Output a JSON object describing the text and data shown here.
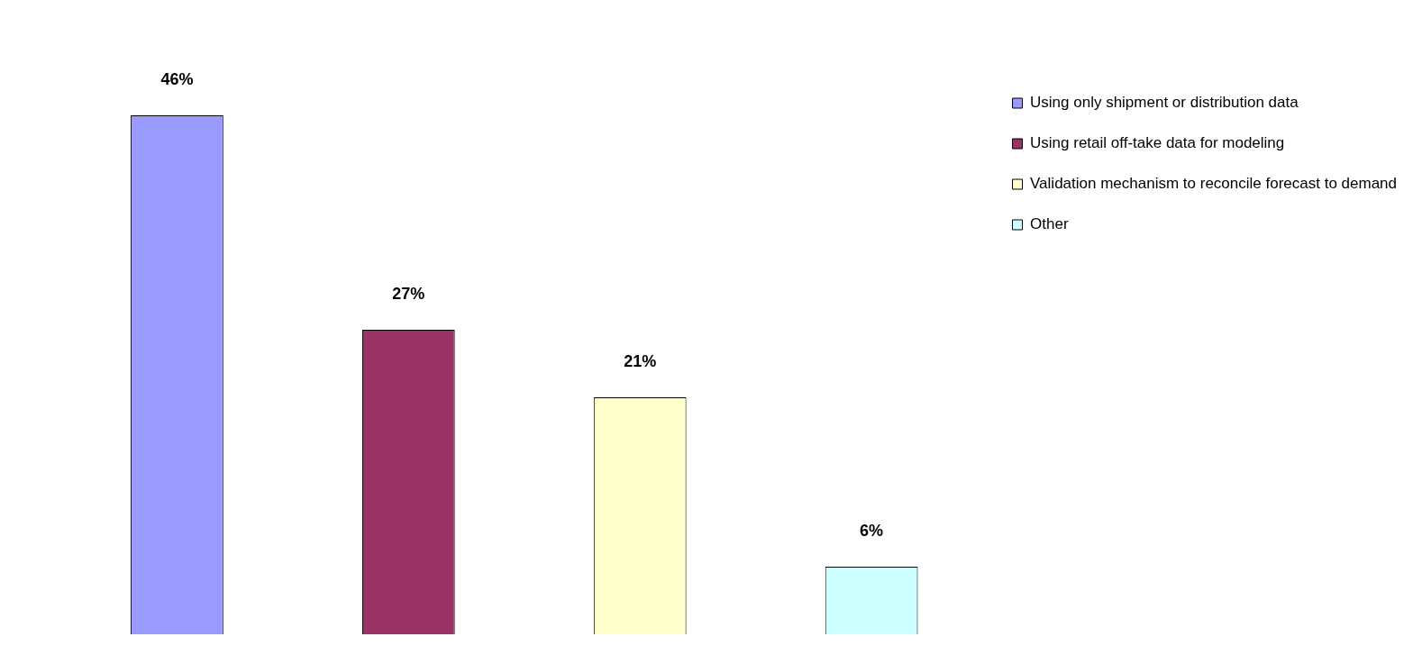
{
  "chart_data": {
    "type": "bar",
    "categories": [
      null,
      null,
      null,
      null
    ],
    "series": [
      {
        "name": "Using only shipment or distribution data",
        "color": "#9999ff",
        "values": [
          46,
          null,
          null,
          null
        ],
        "value_labels": [
          "46%",
          null,
          null,
          null
        ]
      },
      {
        "name": "Using retail off-take data for modeling",
        "color": "#993366",
        "values": [
          null,
          27,
          null,
          null
        ],
        "value_labels": [
          null,
          "27%",
          null,
          null
        ]
      },
      {
        "name": "Validation mechanism to reconcile forecast to demand",
        "color": "#ffffcc",
        "values": [
          null,
          null,
          21,
          null
        ],
        "value_labels": [
          null,
          null,
          "21%",
          null
        ]
      },
      {
        "name": "Other",
        "color": "#ccffff",
        "values": [
          null,
          null,
          null,
          6
        ],
        "value_labels": [
          null,
          null,
          null,
          "6%"
        ]
      }
    ],
    "stacked": true,
    "legend": "top right"
  }
}
